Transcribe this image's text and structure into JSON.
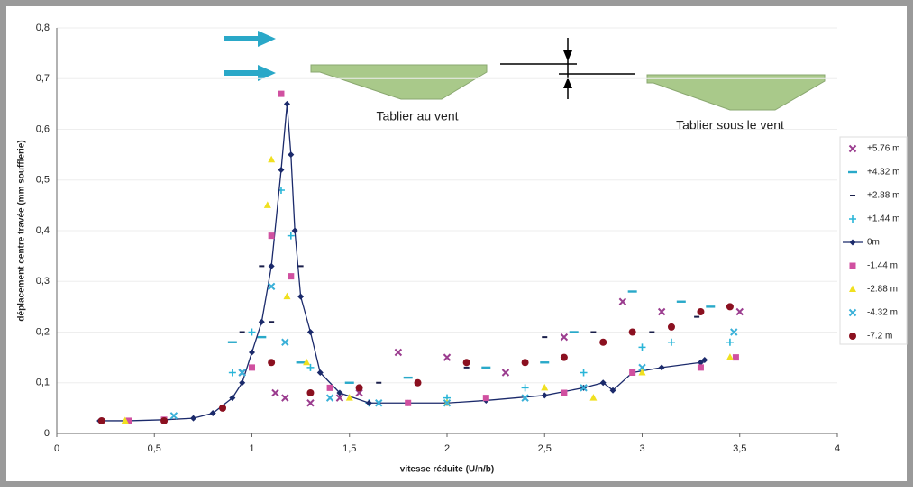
{
  "chart_data": {
    "type": "scatter",
    "x_label": "vitesse réduite (U/n/b)",
    "y_label": "déplacement centre travée (mm soufflerie)",
    "annotations": [
      "Tablier au vent",
      "Tablier sous le vent"
    ],
    "xlim": [
      0,
      4
    ],
    "xticks": [
      0,
      {
        "value": 0.5,
        "label": "0,5"
      },
      1,
      {
        "value": 1.5,
        "label": "1,5"
      },
      2,
      {
        "value": 2.5,
        "label": "2,5"
      },
      3,
      {
        "value": 3.5,
        "label": "3,5"
      },
      4
    ],
    "ylim": [
      0,
      0.8
    ],
    "yticks": [
      0,
      {
        "value": 0.1,
        "label": "0,1"
      },
      {
        "value": 0.2,
        "label": "0,2"
      },
      {
        "value": 0.3,
        "label": "0,3"
      },
      {
        "value": 0.4,
        "label": "0,4"
      },
      {
        "value": 0.5,
        "label": "0,5"
      },
      {
        "value": 0.6,
        "label": "0,6"
      },
      {
        "value": 0.7,
        "label": "0,7"
      },
      {
        "value": 0.8,
        "label": "0,8"
      }
    ],
    "grid": true,
    "legend": "right",
    "series": [
      {
        "name": "+5.76 m",
        "color": "#9b3d8f",
        "marker": "x",
        "x": [
          0.95,
          1.12,
          1.17,
          1.3,
          1.45,
          1.55,
          1.75,
          2.0,
          2.3,
          2.6,
          2.9,
          3.1,
          3.5
        ],
        "values": [
          0.12,
          0.08,
          0.07,
          0.06,
          0.07,
          0.08,
          0.16,
          0.15,
          0.12,
          0.19,
          0.26,
          0.24,
          0.24
        ]
      },
      {
        "name": "+4.32 m",
        "color": "#29a9c9",
        "marker": "dash",
        "x": [
          0.9,
          1.05,
          1.25,
          1.5,
          1.8,
          2.2,
          2.5,
          2.65,
          2.95,
          3.2,
          3.35
        ],
        "values": [
          0.18,
          0.19,
          0.14,
          0.1,
          0.11,
          0.13,
          0.14,
          0.2,
          0.28,
          0.26,
          0.25
        ]
      },
      {
        "name": "+2.88 m",
        "color": "#1a1f4a",
        "marker": "smalldash",
        "x": [
          0.95,
          1.05,
          1.1,
          1.25,
          1.65,
          2.1,
          2.5,
          2.75,
          3.05,
          3.28
        ],
        "values": [
          0.2,
          0.33,
          0.22,
          0.33,
          0.1,
          0.13,
          0.19,
          0.2,
          0.2,
          0.23
        ]
      },
      {
        "name": "+1.44 m",
        "color": "#29b5d8",
        "marker": "plus",
        "x": [
          0.9,
          1.0,
          1.15,
          1.2,
          1.3,
          1.6,
          2.0,
          2.4,
          2.7,
          3.0,
          3.15,
          3.45
        ],
        "values": [
          0.12,
          0.2,
          0.48,
          0.39,
          0.13,
          0.06,
          0.07,
          0.09,
          0.12,
          0.17,
          0.18,
          0.18
        ]
      },
      {
        "name": "0m",
        "color": "#1b2a6b",
        "marker": "line",
        "x": [
          0.22,
          0.37,
          0.55,
          0.7,
          0.8,
          0.9,
          0.95,
          1.0,
          1.05,
          1.1,
          1.15,
          1.18,
          1.2,
          1.22,
          1.25,
          1.3,
          1.35,
          1.45,
          1.6,
          1.8,
          2.0,
          2.2,
          2.5,
          2.7,
          2.8,
          2.85,
          2.95,
          3.1,
          3.3,
          3.32
        ],
        "values": [
          0.025,
          0.025,
          0.027,
          0.03,
          0.04,
          0.07,
          0.1,
          0.16,
          0.22,
          0.33,
          0.52,
          0.65,
          0.55,
          0.4,
          0.27,
          0.2,
          0.12,
          0.08,
          0.06,
          0.06,
          0.06,
          0.065,
          0.075,
          0.09,
          0.1,
          0.085,
          0.12,
          0.13,
          0.14,
          0.145
        ]
      },
      {
        "name": "-1.44 m",
        "color": "#d050a0",
        "marker": "square",
        "x": [
          0.37,
          0.55,
          1.0,
          1.1,
          1.15,
          1.2,
          1.4,
          1.8,
          2.2,
          2.6,
          2.95,
          3.3,
          3.48
        ],
        "values": [
          0.025,
          0.027,
          0.13,
          0.39,
          0.67,
          0.31,
          0.09,
          0.06,
          0.07,
          0.08,
          0.12,
          0.13,
          0.15
        ]
      },
      {
        "name": "-2.88 m",
        "color": "#f0e020",
        "marker": "triangle",
        "x": [
          0.35,
          1.08,
          1.1,
          1.18,
          1.28,
          1.5,
          2.0,
          2.5,
          2.75,
          3.0,
          3.45
        ],
        "values": [
          0.025,
          0.45,
          0.54,
          0.27,
          0.14,
          0.07,
          0.06,
          0.09,
          0.07,
          0.12,
          0.15
        ]
      },
      {
        "name": "-4.32 m",
        "color": "#3ab0d8",
        "marker": "x",
        "x": [
          0.6,
          0.95,
          1.1,
          1.17,
          1.4,
          1.65,
          2.0,
          2.4,
          2.7,
          3.0,
          3.47
        ],
        "values": [
          0.035,
          0.12,
          0.29,
          0.18,
          0.07,
          0.06,
          0.06,
          0.07,
          0.09,
          0.13,
          0.2
        ]
      },
      {
        "name": "-7.2 m",
        "color": "#8b1020",
        "marker": "circle",
        "x": [
          0.23,
          0.55,
          0.85,
          1.1,
          1.3,
          1.55,
          1.85,
          2.1,
          2.4,
          2.6,
          2.8,
          2.95,
          3.15,
          3.3,
          3.45
        ],
        "values": [
          0.025,
          0.025,
          0.05,
          0.14,
          0.08,
          0.09,
          0.1,
          0.14,
          0.14,
          0.15,
          0.18,
          0.2,
          0.21,
          0.24,
          0.25
        ]
      }
    ]
  }
}
